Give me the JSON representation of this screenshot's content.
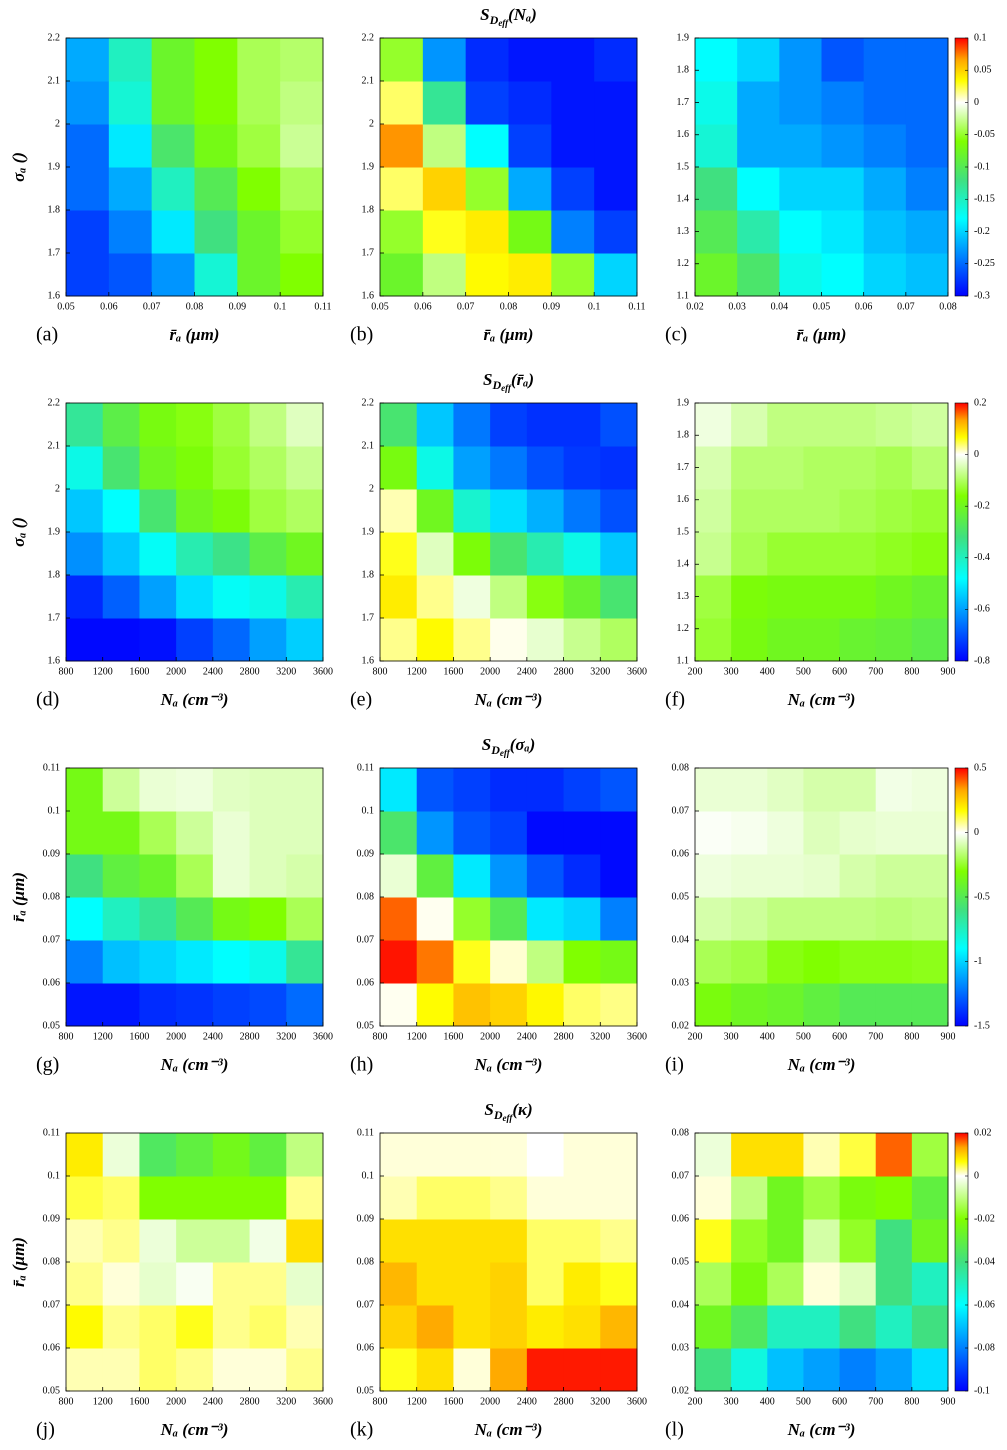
{
  "colormap": {
    "negative": [
      "#0000ff",
      "#0080ff",
      "#00ffff",
      "#40e080",
      "#80ff00",
      "#ffffff"
    ],
    "positive": [
      "#ffffff",
      "#ffff00",
      "#ffa500",
      "#ff0000"
    ]
  },
  "chart_data": [
    {
      "type": "heatmap",
      "panel_label": "(a)",
      "x_label": "r̄ₐ (μm)",
      "y_label": "σₐ ()",
      "xlim": [
        0.05,
        0.11
      ],
      "xticks": [
        0.05,
        0.06,
        0.07,
        0.08,
        0.09,
        0.1,
        0.11
      ],
      "ylim": [
        1.6,
        2.2
      ],
      "yticks": [
        1.6,
        1.7,
        1.8,
        1.9,
        2,
        2.1,
        2.2
      ],
      "zlim": [
        -0.3,
        0.1
      ],
      "values": [
        [
          -0.27,
          -0.26,
          -0.23,
          -0.16,
          -0.08,
          -0.06
        ],
        [
          -0.27,
          -0.24,
          -0.19,
          -0.12,
          -0.08,
          -0.05
        ],
        [
          -0.25,
          -0.22,
          -0.15,
          -0.1,
          -0.06,
          -0.04
        ],
        [
          -0.25,
          -0.19,
          -0.11,
          -0.07,
          -0.045,
          -0.025
        ],
        [
          -0.23,
          -0.16,
          -0.08,
          -0.06,
          -0.04,
          -0.03
        ],
        [
          -0.22,
          -0.15,
          -0.08,
          -0.06,
          -0.04,
          -0.035
        ]
      ]
    },
    {
      "type": "heatmap",
      "panel_label": "(b)",
      "title": [
        "S",
        "D",
        "eff",
        "(Nₐ)"
      ],
      "x_label": "r̄ₐ (μm)",
      "xlim": [
        0.05,
        0.11
      ],
      "xticks": [
        0.05,
        0.06,
        0.07,
        0.08,
        0.09,
        0.1,
        0.11
      ],
      "ylim": [
        1.6,
        2.2
      ],
      "yticks": [
        1.6,
        1.7,
        1.8,
        1.9,
        2,
        2.1,
        2.2
      ],
      "zlim": [
        -0.3,
        0.1
      ],
      "values": [
        [
          -0.08,
          -0.03,
          0.035,
          0.04,
          -0.05,
          -0.2
        ],
        [
          -0.05,
          0.03,
          0.04,
          -0.07,
          -0.24,
          -0.27
        ],
        [
          0.02,
          0.05,
          -0.05,
          -0.22,
          -0.27,
          -0.29
        ],
        [
          0.07,
          -0.03,
          -0.18,
          -0.27,
          -0.29,
          -0.29
        ],
        [
          0.02,
          -0.13,
          -0.27,
          -0.28,
          -0.29,
          -0.29
        ],
        [
          -0.05,
          -0.23,
          -0.28,
          -0.29,
          -0.29,
          -0.28
        ]
      ]
    },
    {
      "type": "heatmap",
      "panel_label": "(c)",
      "x_label": "r̄ₐ (μm)",
      "xlim": [
        0.02,
        0.08
      ],
      "xticks": [
        0.02,
        0.03,
        0.04,
        0.05,
        0.06,
        0.07,
        0.08
      ],
      "ylim": [
        1.1,
        1.9
      ],
      "yticks": [
        1.1,
        1.2,
        1.3,
        1.4,
        1.5,
        1.6,
        1.7,
        1.8,
        1.9
      ],
      "zlim": [
        -0.3,
        0.1
      ],
      "zticks": [
        -0.3,
        -0.25,
        -0.2,
        -0.15,
        -0.1,
        -0.05,
        0,
        0.05,
        0.1
      ],
      "values": [
        [
          -0.08,
          -0.11,
          -0.17,
          -0.18,
          -0.2,
          -0.21
        ],
        [
          -0.1,
          -0.14,
          -0.18,
          -0.19,
          -0.21,
          -0.22
        ],
        [
          -0.12,
          -0.18,
          -0.2,
          -0.2,
          -0.22,
          -0.24
        ],
        [
          -0.16,
          -0.22,
          -0.22,
          -0.23,
          -0.24,
          -0.25
        ],
        [
          -0.17,
          -0.22,
          -0.23,
          -0.24,
          -0.25,
          -0.25
        ],
        [
          -0.18,
          -0.2,
          -0.23,
          -0.26,
          -0.25,
          -0.25
        ]
      ]
    },
    {
      "type": "heatmap",
      "panel_label": "(d)",
      "x_label": "Nₐ (cm⁻³)",
      "y_label": "σₐ ()",
      "xlim": [
        800,
        3600
      ],
      "xticks": [
        800,
        1200,
        1600,
        2000,
        2400,
        2800,
        3200,
        3600
      ],
      "ylim": [
        1.6,
        2.2
      ],
      "yticks": [
        1.6,
        1.7,
        1.8,
        1.9,
        2,
        2.1,
        2.2
      ],
      "zlim": [
        -0.8,
        0.2
      ],
      "values": [
        [
          -0.79,
          -0.79,
          -0.78,
          -0.72,
          -0.67,
          -0.6,
          -0.54
        ],
        [
          -0.75,
          -0.68,
          -0.6,
          -0.52,
          -0.47,
          -0.45,
          -0.38
        ],
        [
          -0.62,
          -0.55,
          -0.47,
          -0.38,
          -0.33,
          -0.25,
          -0.2
        ],
        [
          -0.55,
          -0.48,
          -0.3,
          -0.2,
          -0.17,
          -0.12,
          -0.1
        ],
        [
          -0.45,
          -0.3,
          -0.2,
          -0.17,
          -0.13,
          -0.1,
          -0.07
        ],
        [
          -0.35,
          -0.25,
          -0.18,
          -0.15,
          -0.12,
          -0.08,
          -0.04
        ]
      ]
    },
    {
      "type": "heatmap",
      "panel_label": "(e)",
      "title": [
        "S",
        "D",
        "eff",
        "(r̄ₐ)"
      ],
      "x_label": "Nₐ (cm⁻³)",
      "xlim": [
        800,
        3600
      ],
      "xticks": [
        800,
        1200,
        1600,
        2000,
        2400,
        2800,
        3200,
        3600
      ],
      "ylim": [
        1.6,
        2.2
      ],
      "yticks": [
        1.6,
        1.7,
        1.8,
        1.9,
        2,
        2.1,
        2.2
      ],
      "zlim": [
        -0.8,
        0.2
      ],
      "values": [
        [
          0.03,
          0.07,
          0.03,
          0.005,
          -0.03,
          -0.07,
          -0.1
        ],
        [
          0.08,
          0.03,
          -0.02,
          -0.08,
          -0.15,
          -0.22,
          -0.3
        ],
        [
          0.06,
          -0.04,
          -0.17,
          -0.3,
          -0.38,
          -0.45,
          -0.55
        ],
        [
          0.02,
          -0.2,
          -0.42,
          -0.52,
          -0.58,
          -0.65,
          -0.7
        ],
        [
          -0.18,
          -0.45,
          -0.6,
          -0.65,
          -0.7,
          -0.73,
          -0.74
        ],
        [
          -0.3,
          -0.55,
          -0.65,
          -0.72,
          -0.74,
          -0.74,
          -0.7
        ]
      ]
    },
    {
      "type": "heatmap",
      "panel_label": "(f)",
      "x_label": "Nₐ (cm⁻³)",
      "xlim": [
        200,
        900
      ],
      "xticks": [
        200,
        300,
        400,
        500,
        600,
        700,
        800,
        900
      ],
      "ylim": [
        1.1,
        1.9
      ],
      "yticks": [
        1.1,
        1.2,
        1.3,
        1.4,
        1.5,
        1.6,
        1.7,
        1.8,
        1.9
      ],
      "zlim": [
        -0.8,
        0.2
      ],
      "zticks": [
        -0.8,
        -0.6,
        -0.4,
        -0.2,
        0,
        0.2
      ],
      "values": [
        [
          -0.13,
          -0.18,
          -0.2,
          -0.2,
          -0.22,
          -0.23,
          -0.25
        ],
        [
          -0.12,
          -0.17,
          -0.18,
          -0.18,
          -0.18,
          -0.2,
          -0.22
        ],
        [
          -0.07,
          -0.11,
          -0.13,
          -0.13,
          -0.13,
          -0.14,
          -0.15
        ],
        [
          -0.06,
          -0.1,
          -0.1,
          -0.1,
          -0.11,
          -0.12,
          -0.13
        ],
        [
          -0.05,
          -0.09,
          -0.09,
          -0.1,
          -0.1,
          -0.11,
          -0.09
        ],
        [
          -0.02,
          -0.05,
          -0.08,
          -0.08,
          -0.08,
          -0.07,
          -0.06
        ]
      ]
    },
    {
      "type": "heatmap",
      "panel_label": "(g)",
      "x_label": "Nₐ (cm⁻³)",
      "y_label": "r̄ₐ (μm)",
      "xlim": [
        800,
        3600
      ],
      "xticks": [
        800,
        1200,
        1600,
        2000,
        2400,
        2800,
        3200,
        3600
      ],
      "ylim": [
        0.05,
        0.11
      ],
      "yticks": [
        0.05,
        0.06,
        0.07,
        0.08,
        0.09,
        0.1,
        0.11
      ],
      "zlim": [
        -1.5,
        0.5
      ],
      "values": [
        [
          -1.45,
          -1.45,
          -1.4,
          -1.38,
          -1.35,
          -1.33,
          -1.25
        ],
        [
          -1.2,
          -1.05,
          -1.0,
          -0.95,
          -0.9,
          -0.85,
          -0.65
        ],
        [
          -0.9,
          -0.75,
          -0.65,
          -0.5,
          -0.35,
          -0.3,
          -0.2
        ],
        [
          -0.6,
          -0.45,
          -0.4,
          -0.2,
          -0.05,
          -0.08,
          -0.1
        ],
        [
          -0.35,
          -0.35,
          -0.2,
          -0.12,
          -0.05,
          -0.08,
          -0.08
        ],
        [
          -0.35,
          -0.12,
          -0.05,
          -0.04,
          -0.07,
          -0.08,
          -0.08
        ]
      ]
    },
    {
      "type": "heatmap",
      "panel_label": "(h)",
      "title": [
        "S",
        "D",
        "eff",
        "(σₐ)"
      ],
      "x_label": "Nₐ (cm⁻³)",
      "xlim": [
        800,
        3600
      ],
      "xticks": [
        800,
        1200,
        1600,
        2000,
        2400,
        2800,
        3200,
        3600
      ],
      "ylim": [
        0.05,
        0.11
      ],
      "yticks": [
        0.05,
        0.06,
        0.07,
        0.08,
        0.09,
        0.1,
        0.11
      ],
      "zlim": [
        -1.5,
        0.5
      ],
      "values": [
        [
          0.01,
          0.17,
          0.28,
          0.25,
          0.18,
          0.1,
          0.08
        ],
        [
          0.48,
          0.38,
          0.15,
          0.03,
          -0.15,
          -0.3,
          -0.35
        ],
        [
          0.4,
          0.01,
          -0.25,
          -0.5,
          -0.95,
          -1.0,
          -1.2
        ],
        [
          -0.05,
          -0.45,
          -0.95,
          -1.15,
          -1.3,
          -1.4,
          -1.48
        ],
        [
          -0.55,
          -1.15,
          -1.3,
          -1.35,
          -1.48,
          -1.48,
          -1.48
        ],
        [
          -0.95,
          -1.3,
          -1.35,
          -1.4,
          -1.4,
          -1.35,
          -1.3
        ]
      ]
    },
    {
      "type": "heatmap",
      "panel_label": "(i)",
      "x_label": "Nₐ (cm⁻³)",
      "xlim": [
        200,
        900
      ],
      "xticks": [
        200,
        300,
        400,
        500,
        600,
        700,
        800,
        900
      ],
      "ylim": [
        0.02,
        0.08
      ],
      "yticks": [
        0.02,
        0.03,
        0.04,
        0.05,
        0.06,
        0.07,
        0.08
      ],
      "zlim": [
        -1.5,
        0.5
      ],
      "zticks": [
        -1.5,
        -1,
        -0.5,
        0,
        0.5
      ],
      "values": [
        [
          -0.33,
          -0.38,
          -0.4,
          -0.45,
          -0.5,
          -0.5,
          -0.5
        ],
        [
          -0.2,
          -0.22,
          -0.28,
          -0.3,
          -0.28,
          -0.28,
          -0.27
        ],
        [
          -0.1,
          -0.12,
          -0.15,
          -0.15,
          -0.15,
          -0.16,
          -0.15
        ],
        [
          -0.04,
          -0.05,
          -0.05,
          -0.06,
          -0.1,
          -0.12,
          -0.12
        ],
        [
          -0.01,
          -0.02,
          -0.04,
          -0.08,
          -0.06,
          -0.05,
          -0.05
        ],
        [
          -0.05,
          -0.05,
          -0.07,
          -0.1,
          -0.1,
          -0.03,
          -0.04
        ]
      ]
    },
    {
      "type": "heatmap",
      "panel_label": "(j)",
      "x_label": "Nₐ (cm⁻³)",
      "y_label": "r̄ₐ (μm)",
      "xlim": [
        800,
        3600
      ],
      "xticks": [
        800,
        1200,
        1600,
        2000,
        2400,
        2800,
        3200,
        3600
      ],
      "ylim": [
        0.05,
        0.11
      ],
      "yticks": [
        0.05,
        0.06,
        0.07,
        0.08,
        0.09,
        0.1,
        0.11
      ],
      "zlim": [
        -0.1,
        0.02
      ],
      "values": [
        [
          0.002,
          0.002,
          0.004,
          0.003,
          0.001,
          0.001,
          0.003
        ],
        [
          0.007,
          0.003,
          0.004,
          0.006,
          0.003,
          0.004,
          0.002
        ],
        [
          0.003,
          0.001,
          -0.004,
          -0.001,
          0.003,
          0.003,
          -0.004
        ],
        [
          0.002,
          0.003,
          -0.003,
          -0.008,
          -0.008,
          -0.002,
          0.009
        ],
        [
          0.005,
          0.004,
          -0.02,
          -0.02,
          -0.02,
          -0.02,
          0.003
        ],
        [
          0.008,
          -0.003,
          -0.035,
          -0.03,
          -0.024,
          -0.03,
          -0.01
        ]
      ]
    },
    {
      "type": "heatmap",
      "panel_label": "(k)",
      "title": [
        "S",
        "D",
        "eff",
        "(κ)"
      ],
      "x_label": "Nₐ (cm⁻³)",
      "xlim": [
        800,
        3600
      ],
      "xticks": [
        800,
        1200,
        1600,
        2000,
        2400,
        2800,
        3200,
        3600
      ],
      "ylim": [
        0.05,
        0.11
      ],
      "yticks": [
        0.05,
        0.06,
        0.07,
        0.08,
        0.09,
        0.1,
        0.11
      ],
      "zlim": [
        -0.1,
        0.02
      ],
      "values": [
        [
          0.006,
          0.009,
          0.001,
          0.013,
          0.019,
          0.019,
          0.019
        ],
        [
          0.01,
          0.013,
          0.009,
          0.01,
          0.008,
          0.009,
          0.012
        ],
        [
          0.012,
          0.009,
          0.009,
          0.01,
          0.004,
          0.008,
          0.006
        ],
        [
          0.009,
          0.009,
          0.009,
          0.009,
          0.004,
          0.004,
          0.003
        ],
        [
          0.002,
          0.004,
          0.004,
          0.003,
          0.001,
          0.001,
          0.001
        ],
        [
          0.001,
          0.001,
          0.001,
          0.001,
          0,
          0.001,
          0.001
        ]
      ]
    },
    {
      "type": "heatmap",
      "panel_label": "(l)",
      "x_label": "Nₐ (cm⁻³)",
      "xlim": [
        200,
        900
      ],
      "xticks": [
        200,
        300,
        400,
        500,
        600,
        700,
        800,
        900
      ],
      "ylim": [
        0.02,
        0.08
      ],
      "yticks": [
        0.02,
        0.03,
        0.04,
        0.05,
        0.06,
        0.07,
        0.08
      ],
      "zlim": [
        -0.1,
        0.02
      ],
      "zticks": [
        -0.1,
        -0.08,
        -0.06,
        -0.04,
        -0.02,
        0,
        0.02
      ],
      "values": [
        [
          -0.04,
          -0.055,
          -0.07,
          -0.075,
          -0.08,
          -0.075,
          -0.065
        ],
        [
          -0.025,
          -0.035,
          -0.05,
          -0.05,
          -0.04,
          -0.05,
          -0.04
        ],
        [
          -0.013,
          -0.022,
          -0.013,
          0.001,
          -0.005,
          -0.04,
          -0.05
        ],
        [
          0.006,
          -0.017,
          -0.025,
          -0.007,
          -0.017,
          -0.04,
          -0.025
        ],
        [
          0.001,
          -0.01,
          -0.025,
          -0.015,
          -0.022,
          -0.02,
          -0.03
        ],
        [
          -0.003,
          0.009,
          0.009,
          0.002,
          0.005,
          0.016,
          -0.015
        ]
      ]
    }
  ]
}
